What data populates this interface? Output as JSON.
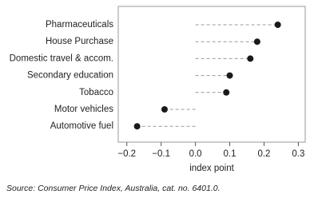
{
  "chart_data": {
    "type": "dot",
    "categories": [
      "Pharmaceuticals",
      "House Purchase",
      "Domestic travel & accom.",
      "Secondary education",
      "Tobacco",
      "Motor vehicles",
      "Automotive fuel"
    ],
    "values": [
      0.24,
      0.18,
      0.16,
      0.1,
      0.09,
      -0.09,
      -0.17
    ],
    "color": "#1a1a1a",
    "xlim": [
      -0.225,
      0.32
    ],
    "xticks": [
      {
        "value": -0.2,
        "label": "−0.2"
      },
      {
        "value": -0.1,
        "label": "−0.1"
      },
      {
        "value": 0,
        "label": "0.0"
      },
      0.1,
      0.2,
      0.3
    ],
    "x_label": "index point",
    "source": "Source: Consumer Price Index, Australia, cat. no. 6401.0."
  }
}
